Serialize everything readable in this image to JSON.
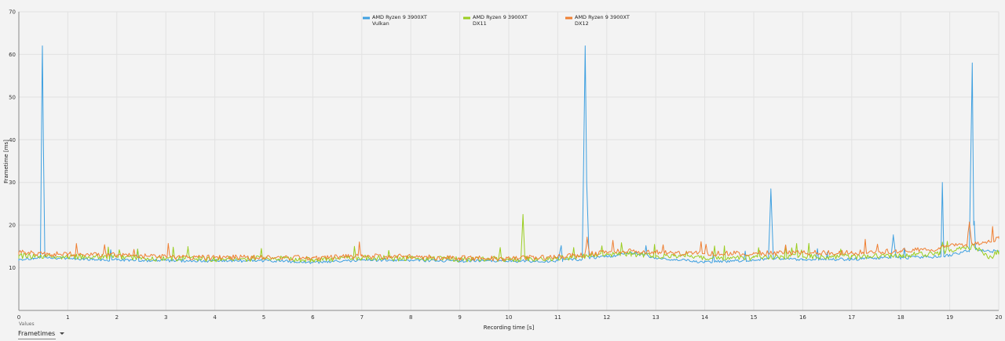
{
  "controls": {
    "values_label": "Values",
    "selected": "Frametimes"
  },
  "colors": {
    "background": "#f3f3f3",
    "grid": "#e2e2e2",
    "axis": "#8a8a8a"
  },
  "chart_data": {
    "type": "line",
    "title": "",
    "xlabel": "Recording time [s]",
    "ylabel": "Frametime [ms]",
    "xlim": [
      0,
      20
    ],
    "ylim": [
      0,
      70
    ],
    "xticks": [
      0,
      1,
      2,
      3,
      4,
      5,
      6,
      7,
      8,
      9,
      10,
      11,
      12,
      13,
      14,
      15,
      16,
      17,
      18,
      19,
      20
    ],
    "yticks": [
      10,
      20,
      30,
      40,
      50,
      60,
      70
    ],
    "grid": true,
    "legend_position": "top-center",
    "series": [
      {
        "name": "AMD Ryzen 9 3900XT Vulkan",
        "legend_lines": [
          "AMD Ryzen 9 3900XT",
          "Vulkan"
        ],
        "color": "#3fa0e0",
        "x": [
          0,
          0.3,
          0.44,
          0.48,
          0.5,
          0.53,
          0.6,
          1,
          2,
          3,
          4,
          5,
          6,
          7,
          8,
          9,
          10,
          10.5,
          11,
          11.07,
          11.1,
          11.5,
          11.56,
          11.59,
          11.64,
          12,
          12.5,
          13,
          14,
          15,
          15.3,
          15.35,
          15.4,
          16,
          17,
          17.8,
          17.85,
          17.9,
          18,
          18.82,
          18.85,
          18.88,
          19,
          19.4,
          19.46,
          19.49,
          19.53,
          20
        ],
        "y": [
          12,
          12.2,
          12.4,
          62,
          40,
          12.4,
          12.3,
          12.2,
          11.8,
          11.7,
          11.6,
          11.7,
          11.2,
          11.8,
          11.8,
          11.6,
          11.6,
          11.5,
          11.6,
          15.2,
          11.8,
          12.0,
          62,
          30,
          12.4,
          12.6,
          13.6,
          12.3,
          11.3,
          11.8,
          12.2,
          28.5,
          12.2,
          12.0,
          12.0,
          12.4,
          17.5,
          12.4,
          12.3,
          12.6,
          30,
          12.6,
          13.0,
          14.0,
          58,
          20,
          14.2,
          13.8
        ]
      },
      {
        "name": "AMD Ryzen 9 3900XT DX11",
        "legend_lines": [
          "AMD Ryzen 9 3900XT",
          "DX11"
        ],
        "color": "#9acd1f",
        "x": [
          0,
          0.5,
          1,
          2,
          3,
          3.4,
          3.45,
          3.5,
          4,
          5,
          6,
          7,
          8,
          9,
          10,
          10.25,
          10.29,
          10.33,
          10.37,
          11,
          12,
          12.5,
          13,
          14,
          15,
          16,
          17,
          18,
          18.8,
          18.85,
          18.9,
          19,
          19.5,
          19.8,
          20
        ],
        "y": [
          12.8,
          12.6,
          12.6,
          12.6,
          12.1,
          12.2,
          14.5,
          12.2,
          12.0,
          12.2,
          11.9,
          12.3,
          12.2,
          12.0,
          12.1,
          12.0,
          22.5,
          12.1,
          12.0,
          12.2,
          13.2,
          13.3,
          12.8,
          12.2,
          12.4,
          12.5,
          12.6,
          13.0,
          13.2,
          16,
          13.5,
          14.0,
          15.0,
          12.2,
          13.8
        ]
      },
      {
        "name": "AMD Ryzen 9 3900XT DX12",
        "legend_lines": [
          "AMD Ryzen 9 3900XT",
          "DX12"
        ],
        "color": "#ef7f32",
        "x": [
          0,
          0.5,
          1,
          2,
          3,
          4,
          5,
          6,
          7,
          8,
          9,
          10,
          11,
          11.55,
          11.6,
          11.65,
          12,
          12.5,
          13,
          14,
          15,
          16,
          17,
          18,
          18.8,
          19,
          19.35,
          19.4,
          19.45,
          19.8,
          20
        ],
        "y": [
          13.6,
          13.3,
          13.2,
          13.0,
          12.6,
          12.4,
          12.5,
          12.3,
          12.7,
          12.6,
          12.3,
          12.1,
          12.6,
          13.0,
          17.0,
          13.2,
          13.6,
          14.0,
          13.6,
          13.3,
          13.4,
          13.5,
          13.5,
          14.0,
          14.4,
          15.2,
          15.0,
          20.5,
          15.6,
          16.2,
          16.8
        ]
      }
    ]
  }
}
